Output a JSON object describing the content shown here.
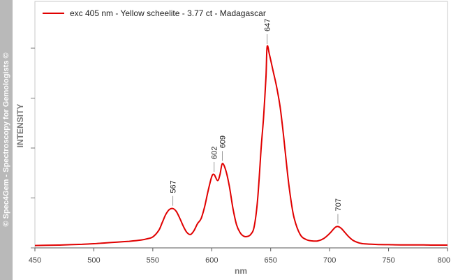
{
  "watermark": "© Spec4Gem - Spectroscopy for Gemologists ©",
  "chart_data": {
    "type": "line",
    "title": "",
    "xlabel": "nm",
    "ylabel": "INTENSITY",
    "xlim": [
      450,
      800
    ],
    "ylim": [
      0,
      100
    ],
    "x_ticks": [
      "450",
      "500",
      "550",
      "600",
      "650",
      "700",
      "750",
      "800"
    ],
    "grid": false,
    "legend_position": "top-left",
    "series": [
      {
        "name": "exc 405 nm - Yellow scheelite - 3.77 ct - Madagascar",
        "color": "#e00000",
        "x": [
          450,
          460,
          470,
          480,
          490,
          500,
          510,
          520,
          530,
          540,
          545,
          550,
          555,
          558,
          561,
          564,
          567,
          570,
          573,
          576,
          579,
          582,
          585,
          588,
          591,
          594,
          597,
          600,
          602,
          605,
          607,
          609,
          612,
          615,
          618,
          621,
          624,
          627,
          630,
          633,
          636,
          639,
          642,
          644,
          646,
          647,
          649,
          652,
          655,
          658,
          661,
          664,
          667,
          670,
          675,
          680,
          685,
          690,
          695,
          700,
          703,
          705,
          707,
          710,
          713,
          716,
          720,
          725,
          730,
          740,
          750,
          760,
          770,
          780,
          790,
          800
        ],
        "y": [
          0.5,
          0.6,
          0.7,
          0.9,
          1.1,
          1.4,
          1.8,
          2.2,
          2.6,
          3.2,
          3.8,
          4.8,
          8.0,
          12.0,
          16.0,
          18.5,
          19.0,
          17.5,
          14.0,
          10.0,
          7.0,
          6.0,
          8.0,
          11.5,
          14.0,
          20.0,
          28.0,
          35.0,
          36.0,
          33.0,
          36.0,
          41.5,
          38.0,
          30.0,
          19.0,
          11.0,
          7.0,
          5.2,
          5.0,
          6.0,
          10.0,
          24.0,
          50.0,
          65.0,
          85.0,
          100.0,
          96.0,
          88.0,
          80.0,
          70.0,
          55.0,
          38.0,
          24.0,
          14.0,
          6.0,
          3.5,
          2.8,
          2.8,
          4.0,
          6.5,
          8.5,
          9.7,
          10.0,
          9.0,
          7.0,
          5.0,
          3.0,
          1.8,
          1.3,
          1.0,
          0.9,
          0.8,
          0.8,
          0.8,
          0.7,
          0.7
        ]
      }
    ],
    "peaks": [
      {
        "x": 567,
        "label": "567",
        "y": 19.0
      },
      {
        "x": 602,
        "label": "602",
        "y": 36.0
      },
      {
        "x": 609,
        "label": "609",
        "y": 41.5
      },
      {
        "x": 647,
        "label": "647",
        "y": 100.0
      },
      {
        "x": 707,
        "label": "707",
        "y": 10.0
      }
    ]
  }
}
